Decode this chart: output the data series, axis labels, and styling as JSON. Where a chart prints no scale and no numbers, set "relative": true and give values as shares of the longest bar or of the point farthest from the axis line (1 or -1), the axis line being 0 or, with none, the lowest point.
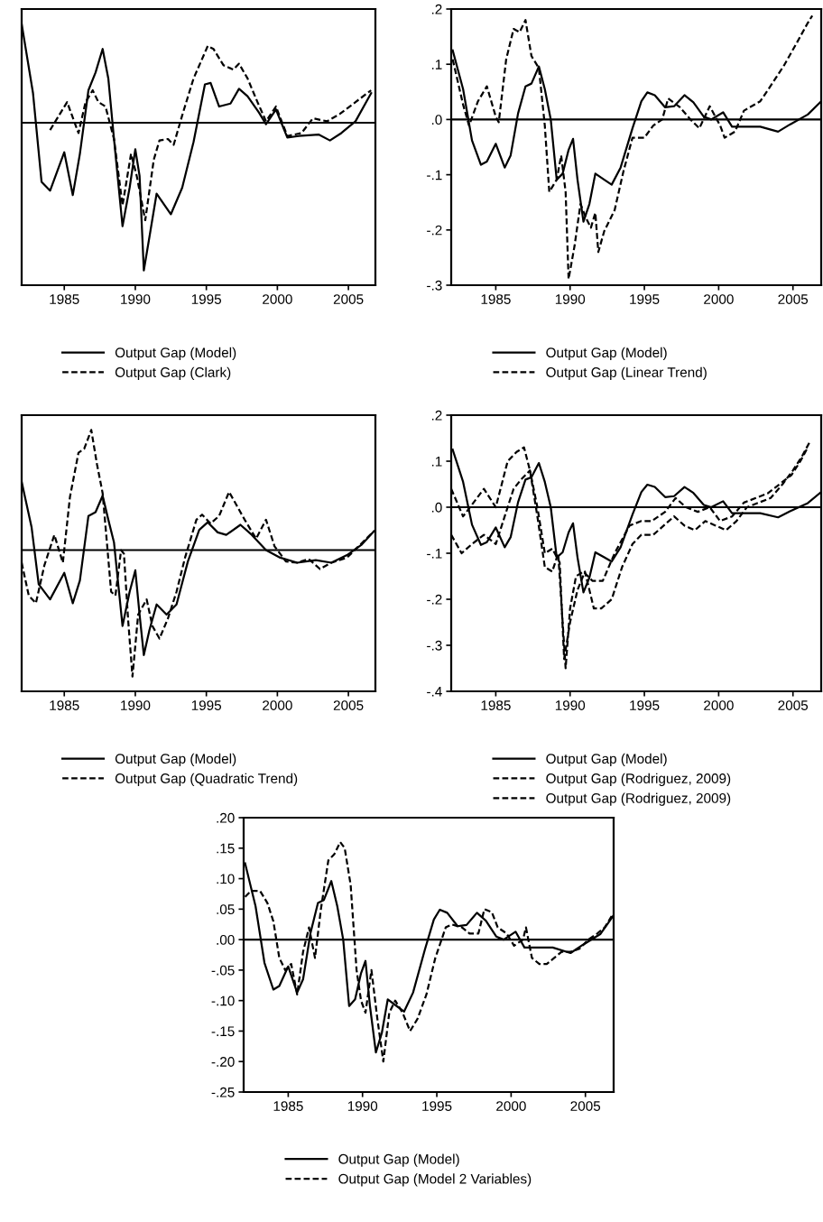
{
  "chart_data": [
    {
      "type": "line",
      "relative": true,
      "xlim": [
        1982,
        2006.9
      ],
      "xticks": [
        1985,
        1990,
        1995,
        2000,
        2005
      ],
      "legend": "bottom",
      "grid": false,
      "ref_lines": [
        {
          "axis": "y",
          "value": 0
        }
      ],
      "series": [
        {
          "name": "Output Gap (Model)",
          "color": "#000000",
          "line_style": "solid",
          "x": [
            1982.0,
            1982.8,
            1983.4,
            1984.0,
            1985.0,
            1985.6,
            1986.1,
            1986.7,
            1987.2,
            1987.7,
            1988.1,
            1988.5,
            1989.1,
            1989.6,
            1990.0,
            1990.3,
            1990.6,
            1991.0,
            1991.5,
            1992.5,
            1993.3,
            1994.1,
            1994.9,
            1995.3,
            1995.9,
            1996.7,
            1997.3,
            1997.9,
            1998.7,
            1999.2,
            1999.9,
            2000.7,
            2001.5,
            2002.9,
            2003.7,
            2004.5,
            2005.5,
            2006.6
          ],
          "values": [
            0.67,
            0.2,
            -0.4,
            -0.46,
            -0.2,
            -0.49,
            -0.21,
            0.22,
            0.34,
            0.5,
            0.3,
            -0.11,
            -0.7,
            -0.44,
            -0.18,
            -0.36,
            -1.0,
            -0.77,
            -0.48,
            -0.62,
            -0.44,
            -0.13,
            0.26,
            0.27,
            0.11,
            0.13,
            0.23,
            0.18,
            0.07,
            -0.01,
            0.09,
            -0.1,
            -0.09,
            -0.08,
            -0.12,
            -0.07,
            0.01,
            0.2
          ]
        },
        {
          "name": "Output Gap (Clark)",
          "color": "#000000",
          "line_style": "dashed",
          "x": [
            1984.0,
            1985.2,
            1986.0,
            1986.5,
            1987.0,
            1987.4,
            1987.9,
            1988.5,
            1989.1,
            1989.7,
            1990.1,
            1990.7,
            1991.3,
            1991.7,
            1992.3,
            1992.7,
            1993.3,
            1994.1,
            1995.1,
            1995.5,
            1996.2,
            1996.9,
            1997.3,
            1997.9,
            1998.6,
            1999.2,
            1999.9,
            2000.7,
            2001.7,
            2002.5,
            2003.5,
            2004.4,
            2005.5,
            2006.6
          ],
          "values": [
            -0.05,
            0.14,
            -0.07,
            0.14,
            0.22,
            0.14,
            0.11,
            -0.11,
            -0.56,
            -0.21,
            -0.36,
            -0.66,
            -0.25,
            -0.12,
            -0.11,
            -0.15,
            0.05,
            0.3,
            0.52,
            0.5,
            0.39,
            0.36,
            0.4,
            0.3,
            0.14,
            0.01,
            0.11,
            -0.09,
            -0.07,
            0.03,
            0.01,
            0.06,
            0.14,
            0.22
          ]
        }
      ]
    },
    {
      "type": "line",
      "xlim": [
        1982,
        2006.9
      ],
      "xticks": [
        1985,
        1990,
        1995,
        2000,
        2005
      ],
      "ylim": [
        -0.3,
        0.2
      ],
      "yticks": [
        {
          "value": -0.3,
          "label": "-.3"
        },
        {
          "value": -0.2,
          "label": "-.2"
        },
        {
          "value": -0.1,
          "label": "-.1"
        },
        {
          "value": 0,
          "label": ".0"
        },
        {
          "value": 0.1,
          "label": ".1"
        },
        {
          "value": 0.2,
          "label": ".2"
        }
      ],
      "legend": "bottom",
      "grid": false,
      "ref_lines": [
        {
          "axis": "y",
          "value": 0
        }
      ],
      "series": [
        {
          "name": "Output Gap (Model)",
          "color": "#000000",
          "line_style": "solid",
          "x": [
            1982.1,
            1982.8,
            1983.4,
            1984.0,
            1984.4,
            1985.0,
            1985.6,
            1986.0,
            1986.5,
            1987.0,
            1987.4,
            1987.9,
            1988.3,
            1988.7,
            1989.1,
            1989.5,
            1989.9,
            1990.2,
            1990.5,
            1990.9,
            1991.3,
            1991.7,
            1992.3,
            1992.8,
            1993.4,
            1994.2,
            1994.8,
            1995.2,
            1995.7,
            1996.4,
            1997.0,
            1997.7,
            1998.3,
            1999.0,
            1999.5,
            2000.3,
            2000.9,
            2001.7,
            2002.8,
            2004.0,
            2004.8,
            2006.0,
            2006.9
          ],
          "values": [
            0.125,
            0.055,
            -0.038,
            -0.082,
            -0.076,
            -0.044,
            -0.087,
            -0.065,
            0.011,
            0.06,
            0.065,
            0.096,
            0.055,
            0.0,
            -0.109,
            -0.098,
            -0.055,
            -0.035,
            -0.109,
            -0.185,
            -0.153,
            -0.098,
            -0.109,
            -0.118,
            -0.087,
            -0.016,
            0.033,
            0.049,
            0.044,
            0.022,
            0.024,
            0.044,
            0.031,
            0.005,
            0.0,
            0.013,
            -0.013,
            -0.013,
            -0.013,
            -0.022,
            -0.009,
            0.009,
            0.033
          ]
        },
        {
          "name": "Output Gap (Linear Trend)",
          "color": "#000000",
          "line_style": "dashed",
          "x": [
            1982.1,
            1982.8,
            1983.2,
            1983.8,
            1984.4,
            1985.0,
            1985.2,
            1985.7,
            1986.2,
            1986.6,
            1987.0,
            1987.4,
            1987.9,
            1988.3,
            1988.6,
            1989.1,
            1989.4,
            1989.7,
            1989.9,
            1990.3,
            1990.7,
            1991.1,
            1991.4,
            1991.7,
            1991.9,
            1992.3,
            1993.0,
            1993.6,
            1994.2,
            1995.0,
            1995.6,
            1996.2,
            1996.6,
            1997.4,
            1998.1,
            1998.7,
            1999.4,
            2000.1,
            2000.4,
            2001.1,
            2001.7,
            2002.8,
            2003.6,
            2004.4,
            2005.2,
            2006.0,
            2006.3
          ],
          "values": [
            0.109,
            0.027,
            -0.011,
            0.033,
            0.06,
            0.005,
            -0.005,
            0.109,
            0.164,
            0.158,
            0.18,
            0.115,
            0.093,
            -0.011,
            -0.131,
            -0.109,
            -0.065,
            -0.131,
            -0.289,
            -0.229,
            -0.153,
            -0.18,
            -0.196,
            -0.169,
            -0.24,
            -0.202,
            -0.164,
            -0.093,
            -0.033,
            -0.033,
            -0.011,
            0.0,
            0.038,
            0.022,
            0.0,
            -0.016,
            0.024,
            -0.011,
            -0.033,
            -0.022,
            0.016,
            0.033,
            0.065,
            0.098,
            0.136,
            0.175,
            0.188
          ]
        }
      ]
    },
    {
      "type": "line",
      "relative": true,
      "xlim": [
        1982,
        2006.9
      ],
      "xticks": [
        1985,
        1990,
        1995,
        2000,
        2005
      ],
      "legend": "bottom",
      "grid": false,
      "ref_lines": [
        {
          "axis": "y",
          "value": 0
        }
      ],
      "series": [
        {
          "name": "Output Gap (Model)",
          "color": "#000000",
          "line_style": "solid",
          "x": [
            1982.0,
            1982.7,
            1983.2,
            1984.0,
            1985.0,
            1985.6,
            1986.1,
            1986.7,
            1987.2,
            1987.7,
            1988.1,
            1988.5,
            1989.1,
            1989.6,
            1990.0,
            1990.3,
            1990.6,
            1991.0,
            1991.5,
            1992.2,
            1992.9,
            1993.7,
            1994.5,
            1995.1,
            1995.8,
            1996.4,
            1997.4,
            1998.2,
            1999.2,
            2000.2,
            2001.4,
            2002.7,
            2003.8,
            2004.9,
            2005.9,
            2006.8
          ],
          "values": [
            0.54,
            0.18,
            -0.27,
            -0.39,
            -0.18,
            -0.42,
            -0.24,
            0.27,
            0.3,
            0.43,
            0.24,
            0.06,
            -0.6,
            -0.33,
            -0.16,
            -0.51,
            -0.83,
            -0.63,
            -0.43,
            -0.51,
            -0.43,
            -0.09,
            0.16,
            0.22,
            0.14,
            0.12,
            0.2,
            0.12,
            0.0,
            -0.06,
            -0.1,
            -0.08,
            -0.1,
            -0.04,
            0.04,
            0.15
          ]
        },
        {
          "name": "Output Gap (Quadratic Trend)",
          "color": "#000000",
          "line_style": "dashed",
          "x": [
            1982.0,
            1982.5,
            1983.0,
            1983.6,
            1984.3,
            1984.9,
            1985.4,
            1986.0,
            1986.4,
            1986.9,
            1987.3,
            1987.7,
            1988.0,
            1988.3,
            1988.6,
            1989.0,
            1989.2,
            1989.5,
            1989.8,
            1990.2,
            1990.8,
            1991.2,
            1991.7,
            1992.3,
            1992.9,
            1993.5,
            1994.3,
            1994.7,
            1995.3,
            1995.9,
            1996.6,
            1997.1,
            1997.7,
            1998.5,
            1999.2,
            1999.8,
            2000.6,
            2001.4,
            2002.2,
            2003.0,
            2003.8,
            2004.9,
            2005.9,
            2006.8
          ],
          "values": [
            -0.1,
            -0.36,
            -0.42,
            -0.12,
            0.12,
            -0.1,
            0.42,
            0.77,
            0.8,
            0.95,
            0.68,
            0.45,
            0.06,
            -0.33,
            -0.36,
            0.0,
            -0.03,
            -0.56,
            -1.0,
            -0.51,
            -0.39,
            -0.6,
            -0.7,
            -0.54,
            -0.33,
            -0.06,
            0.24,
            0.28,
            0.21,
            0.27,
            0.46,
            0.36,
            0.24,
            0.09,
            0.24,
            0.03,
            -0.09,
            -0.1,
            -0.07,
            -0.15,
            -0.1,
            -0.06,
            0.05,
            0.15
          ]
        }
      ]
    },
    {
      "type": "line",
      "xlim": [
        1982,
        2006.9
      ],
      "xticks": [
        1985,
        1990,
        1995,
        2000,
        2005
      ],
      "ylim": [
        -0.4,
        0.2
      ],
      "yticks": [
        {
          "value": -0.4,
          "label": "-.4"
        },
        {
          "value": -0.3,
          "label": "-.3"
        },
        {
          "value": -0.2,
          "label": "-.2"
        },
        {
          "value": -0.1,
          "label": "-.1"
        },
        {
          "value": 0,
          "label": ".0"
        },
        {
          "value": 0.1,
          "label": ".1"
        },
        {
          "value": 0.2,
          "label": ".2"
        }
      ],
      "legend": "bottom",
      "grid": false,
      "ref_lines": [
        {
          "axis": "y",
          "value": 0
        }
      ],
      "series": [
        {
          "name": "Output Gap (Model)",
          "color": "#000000",
          "line_style": "solid",
          "x": [
            1982.1,
            1982.8,
            1983.4,
            1984.0,
            1984.4,
            1985.0,
            1985.6,
            1986.0,
            1986.5,
            1987.0,
            1987.4,
            1987.9,
            1988.3,
            1988.7,
            1989.1,
            1989.5,
            1989.9,
            1990.2,
            1990.5,
            1990.9,
            1991.3,
            1991.7,
            1992.3,
            1992.8,
            1993.4,
            1994.2,
            1994.8,
            1995.2,
            1995.7,
            1996.4,
            1997.0,
            1997.7,
            1998.3,
            1999.0,
            1999.5,
            2000.3,
            2000.9,
            2001.7,
            2002.8,
            2004.0,
            2004.8,
            2006.0,
            2006.9
          ],
          "values": [
            0.125,
            0.055,
            -0.038,
            -0.082,
            -0.076,
            -0.044,
            -0.087,
            -0.065,
            0.011,
            0.06,
            0.065,
            0.096,
            0.055,
            0.0,
            -0.109,
            -0.098,
            -0.055,
            -0.035,
            -0.109,
            -0.185,
            -0.153,
            -0.098,
            -0.109,
            -0.118,
            -0.087,
            -0.016,
            0.033,
            0.049,
            0.044,
            0.022,
            0.024,
            0.044,
            0.031,
            0.005,
            0.0,
            0.013,
            -0.013,
            -0.013,
            -0.013,
            -0.022,
            -0.009,
            0.009,
            0.033
          ]
        },
        {
          "name": "Output Gap (Rodriguez, 2009)",
          "color": "#000000",
          "line_style": "dashed",
          "x": [
            1982.0,
            1982.8,
            1984.2,
            1985.0,
            1985.8,
            1986.4,
            1986.9,
            1987.3,
            1987.8,
            1988.3,
            1988.8,
            1989.2,
            1989.5,
            1989.7,
            1990.0,
            1990.4,
            1990.9,
            1991.5,
            1992.2,
            1993.0,
            1994.0,
            1994.8,
            1995.5,
            1996.4,
            1997.1,
            1997.8,
            1998.6,
            1999.4,
            2000.1,
            2000.9,
            2001.7,
            2002.5,
            2003.3,
            2004.1,
            2004.9,
            2005.5,
            2006.0
          ],
          "values": [
            0.04,
            -0.02,
            0.04,
            0.0,
            0.1,
            0.12,
            0.13,
            0.08,
            -0.02,
            -0.13,
            -0.14,
            -0.1,
            -0.25,
            -0.35,
            -0.22,
            -0.15,
            -0.14,
            -0.16,
            -0.16,
            -0.1,
            -0.04,
            -0.03,
            -0.03,
            -0.01,
            0.02,
            0.0,
            -0.01,
            0.0,
            -0.03,
            -0.02,
            0.01,
            0.02,
            0.03,
            0.05,
            0.07,
            0.1,
            0.13
          ]
        },
        {
          "name": "Output Gap (Rodriguez, 2009)",
          "color": "#000000",
          "line_style": "dashed",
          "x": [
            1982.0,
            1982.7,
            1983.4,
            1984.2,
            1985.0,
            1985.6,
            1986.2,
            1986.7,
            1987.3,
            1987.8,
            1988.3,
            1988.8,
            1989.3,
            1989.6,
            1990.0,
            1990.5,
            1991.0,
            1991.6,
            1992.1,
            1992.8,
            1993.5,
            1994.2,
            1994.8,
            1995.6,
            1996.3,
            1997.0,
            1997.7,
            1998.4,
            1999.1,
            1999.8,
            2000.5,
            2001.2,
            2001.9,
            2002.7,
            2003.5,
            2004.3,
            2005.0,
            2005.6,
            2006.1
          ],
          "values": [
            -0.06,
            -0.1,
            -0.08,
            -0.06,
            -0.08,
            -0.02,
            0.04,
            0.06,
            0.08,
            0.0,
            -0.1,
            -0.09,
            -0.12,
            -0.33,
            -0.25,
            -0.18,
            -0.14,
            -0.22,
            -0.22,
            -0.2,
            -0.13,
            -0.08,
            -0.06,
            -0.06,
            -0.04,
            -0.02,
            -0.04,
            -0.05,
            -0.03,
            -0.04,
            -0.05,
            -0.03,
            0.0,
            0.01,
            0.02,
            0.05,
            0.08,
            0.11,
            0.14
          ]
        }
      ]
    },
    {
      "type": "line",
      "xlim": [
        1982,
        2006.9
      ],
      "xticks": [
        1985,
        1990,
        1995,
        2000,
        2005
      ],
      "ylim": [
        -0.25,
        0.2
      ],
      "yticks": [
        {
          "value": -0.25,
          "label": "-.25"
        },
        {
          "value": -0.2,
          "label": "-.20"
        },
        {
          "value": -0.15,
          "label": "-.15"
        },
        {
          "value": -0.1,
          "label": "-.10"
        },
        {
          "value": -0.05,
          "label": "-.05"
        },
        {
          "value": 0,
          "label": ".00"
        },
        {
          "value": 0.05,
          "label": ".05"
        },
        {
          "value": 0.1,
          "label": ".10"
        },
        {
          "value": 0.15,
          "label": ".15"
        },
        {
          "value": 0.2,
          "label": ".20"
        }
      ],
      "legend": "bottom",
      "grid": false,
      "ref_lines": [
        {
          "axis": "y",
          "value": 0
        }
      ],
      "series": [
        {
          "name": "Output Gap (Model)",
          "color": "#000000",
          "line_style": "solid",
          "x": [
            1982.1,
            1982.8,
            1983.4,
            1984.0,
            1984.4,
            1985.0,
            1985.6,
            1986.0,
            1986.5,
            1987.0,
            1987.4,
            1987.9,
            1988.3,
            1988.7,
            1989.1,
            1989.5,
            1989.9,
            1990.2,
            1990.5,
            1990.9,
            1991.3,
            1991.7,
            1992.3,
            1992.8,
            1993.4,
            1994.2,
            1994.8,
            1995.2,
            1995.7,
            1996.4,
            1997.0,
            1997.7,
            1998.3,
            1999.0,
            1999.5,
            2000.3,
            2000.9,
            2001.7,
            2002.8,
            2004.0,
            2004.8,
            2006.0,
            2006.9
          ],
          "values": [
            0.125,
            0.055,
            -0.038,
            -0.082,
            -0.076,
            -0.044,
            -0.087,
            -0.065,
            0.011,
            0.06,
            0.065,
            0.096,
            0.055,
            0.0,
            -0.109,
            -0.098,
            -0.055,
            -0.035,
            -0.109,
            -0.185,
            -0.153,
            -0.098,
            -0.109,
            -0.118,
            -0.087,
            -0.016,
            0.033,
            0.049,
            0.044,
            0.022,
            0.024,
            0.044,
            0.031,
            0.005,
            0.0,
            0.013,
            -0.013,
            -0.013,
            -0.013,
            -0.022,
            -0.009,
            0.009,
            0.04
          ]
        },
        {
          "name": "Output Gap (Model 2 Variables)",
          "color": "#000000",
          "line_style": "dashed",
          "x": [
            1982.1,
            1982.5,
            1983.1,
            1983.6,
            1984.0,
            1984.4,
            1984.8,
            1985.2,
            1985.6,
            1986.0,
            1986.4,
            1986.8,
            1987.2,
            1987.7,
            1988.1,
            1988.5,
            1988.8,
            1989.2,
            1989.6,
            1989.9,
            1990.2,
            1990.6,
            1991.0,
            1991.4,
            1991.8,
            1992.2,
            1992.7,
            1993.2,
            1993.7,
            1994.3,
            1994.9,
            1995.6,
            1996.0,
            1996.7,
            1997.2,
            1997.8,
            1998.2,
            1998.7,
            1999.1,
            1999.7,
            2000.2,
            2000.8,
            2001.0,
            2001.4,
            2001.9,
            2002.4,
            2002.9,
            2003.4,
            2004.0,
            2004.6,
            2005.2,
            2005.8,
            2006.3,
            2006.8
          ],
          "values": [
            0.07,
            0.08,
            0.08,
            0.06,
            0.03,
            -0.03,
            -0.05,
            -0.04,
            -0.09,
            -0.02,
            0.02,
            -0.03,
            0.05,
            0.13,
            0.14,
            0.16,
            0.15,
            0.09,
            -0.05,
            -0.1,
            -0.12,
            -0.05,
            -0.13,
            -0.2,
            -0.12,
            -0.1,
            -0.12,
            -0.15,
            -0.13,
            -0.09,
            -0.03,
            0.02,
            0.025,
            0.02,
            0.01,
            0.01,
            0.05,
            0.045,
            0.02,
            0.01,
            -0.01,
            0.0,
            0.02,
            -0.03,
            -0.04,
            -0.04,
            -0.03,
            -0.02,
            -0.02,
            -0.015,
            0.0,
            0.01,
            0.02,
            0.04
          ]
        }
      ]
    }
  ]
}
